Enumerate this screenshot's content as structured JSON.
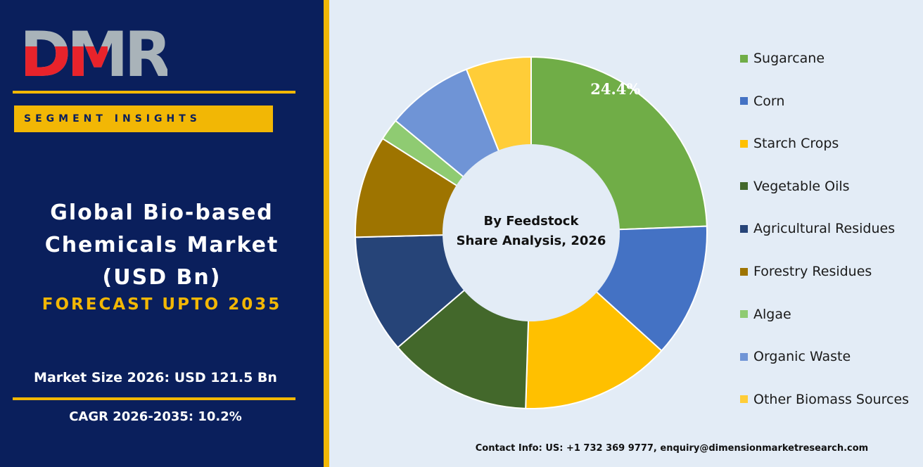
{
  "brand": {
    "logo_text": "DMR",
    "logo_red": "#e8232b",
    "logo_gray": "#a9b3b9"
  },
  "left": {
    "segment_label": "SEGMENT INSIGHTS",
    "title_lines": [
      "Global Bio-based",
      "Chemicals Market",
      "(USD Bn)"
    ],
    "forecast": "FORECAST UPTO 2035",
    "market_size": "Market Size 2026: USD 121.5 Bn",
    "cagr": "CAGR 2026-2035: 10.2%"
  },
  "colors": {
    "panel": "#0a1f5c",
    "accent": "#f2b705",
    "background": "#e3ecf6"
  },
  "chart_data": {
    "type": "pie",
    "center_label": [
      "By Feedstock",
      "Share Analysis, 2026"
    ],
    "legend_placement": "right",
    "slices": [
      {
        "name": "Sugarcane",
        "value": 24.4,
        "color": "#70ad47",
        "label": "24.4%"
      },
      {
        "name": "Corn",
        "value": 12.3,
        "color": "#4472c4",
        "label": ""
      },
      {
        "name": "Starch Crops",
        "value": 13.8,
        "color": "#ffc000",
        "label": ""
      },
      {
        "name": "Vegetable Oils",
        "value": 13.2,
        "color": "#43682b",
        "label": ""
      },
      {
        "name": "Agricultural Residues",
        "value": 10.9,
        "color": "#264478",
        "label": ""
      },
      {
        "name": "Forestry Residues",
        "value": 9.4,
        "color": "#9e7400",
        "label": ""
      },
      {
        "name": "Algae",
        "value": 2.0,
        "color": "#8fcb72",
        "label": ""
      },
      {
        "name": "Organic Waste",
        "value": 8.0,
        "color": "#6f94d6",
        "label": ""
      },
      {
        "name": "Other Biomass Sources",
        "value": 6.0,
        "color": "#ffcd38",
        "label": ""
      }
    ]
  },
  "contact": "Contact Info: US: +1 732 369 9777, enquiry@dimensionmarketresearch.com"
}
